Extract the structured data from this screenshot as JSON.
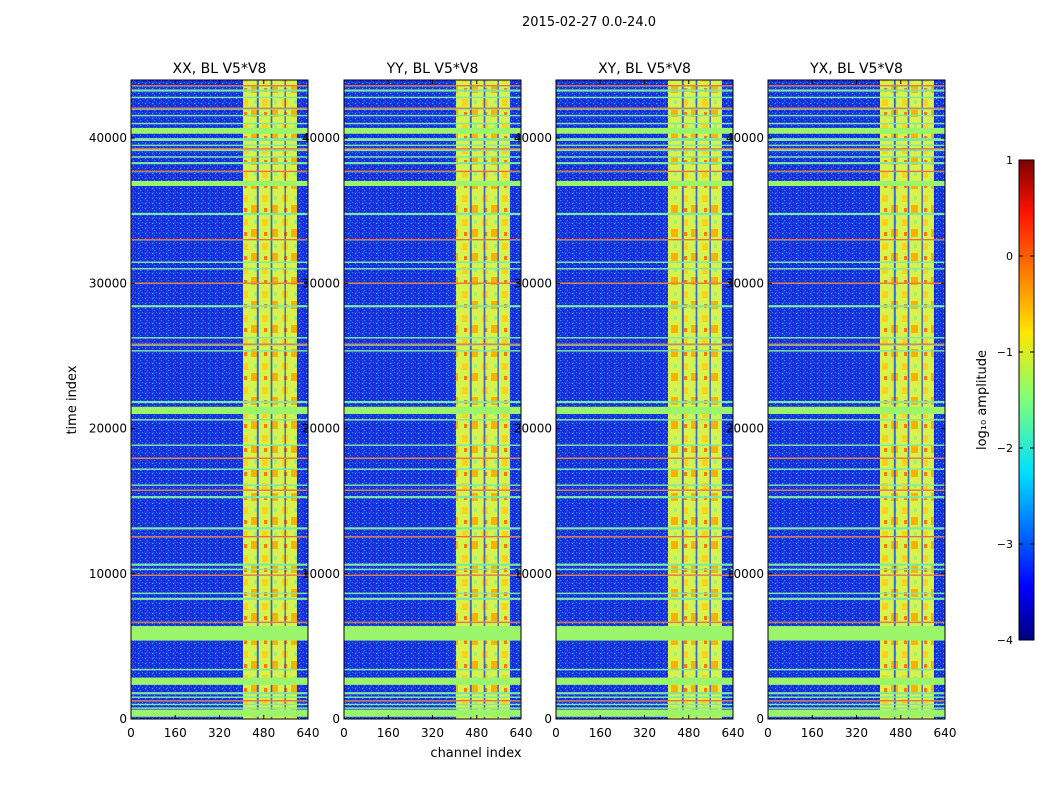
{
  "figure": {
    "suptitle": "2015-02-27 0.0-24.0"
  },
  "chart_data": {
    "type": "heatmap",
    "title": "2015-02-27 0.0-24.0",
    "xlabel": "channel index",
    "ylabel": "time index",
    "xlim": [
      0,
      640
    ],
    "ylim": [
      0,
      44000
    ],
    "xticks": [
      0,
      160,
      320,
      480,
      640
    ],
    "yticks": [
      0,
      10000,
      20000,
      30000,
      40000
    ],
    "panels": [
      {
        "title": "XX, BL V5*V8"
      },
      {
        "title": "YY, BL V5*V8"
      },
      {
        "title": "XY, BL V5*V8"
      },
      {
        "title": "YX, BL V5*V8"
      }
    ],
    "colorbar": {
      "label": "log₁₀ amplitude",
      "range": [
        -4,
        1
      ],
      "ticks": [
        -4,
        -3,
        -2,
        -1,
        0,
        1
      ],
      "colormap": "jet"
    },
    "high_amplitude_channel_band": [
      405,
      600
    ],
    "flagged_time_bands": [
      [
        150,
        650
      ],
      [
        700,
        800
      ],
      [
        950,
        1050
      ],
      [
        1200,
        1300
      ],
      [
        1450,
        1550
      ],
      [
        1700,
        1850
      ],
      [
        2350,
        2850
      ],
      [
        3350,
        3450
      ],
      [
        5400,
        6400
      ],
      [
        6600,
        6700
      ],
      [
        8200,
        8350
      ],
      [
        8600,
        8700
      ],
      [
        9850,
        9950
      ],
      [
        10250,
        10350
      ],
      [
        10550,
        10700
      ],
      [
        12500,
        12600
      ],
      [
        13050,
        13200
      ],
      [
        15200,
        15350
      ],
      [
        15700,
        15800
      ],
      [
        16050,
        16150
      ],
      [
        17150,
        17250
      ],
      [
        17900,
        18000
      ],
      [
        18800,
        18900
      ],
      [
        20550,
        20650
      ],
      [
        21000,
        21500
      ],
      [
        21750,
        21900
      ],
      [
        25300,
        25400
      ],
      [
        25700,
        25850
      ],
      [
        26200,
        26300
      ],
      [
        28350,
        28500
      ],
      [
        29950,
        30050
      ],
      [
        30950,
        31050
      ],
      [
        31400,
        31500
      ],
      [
        32950,
        33050
      ],
      [
        34700,
        34850
      ],
      [
        36700,
        37050
      ],
      [
        37650,
        37750
      ],
      [
        38200,
        38350
      ],
      [
        38650,
        38750
      ],
      [
        39100,
        39300
      ],
      [
        39450,
        39550
      ],
      [
        39800,
        40000
      ],
      [
        40300,
        40700
      ],
      [
        40950,
        41050
      ],
      [
        41500,
        41600
      ],
      [
        41950,
        42100
      ],
      [
        42750,
        42850
      ],
      [
        43200,
        43350
      ],
      [
        43550,
        43650
      ]
    ]
  }
}
